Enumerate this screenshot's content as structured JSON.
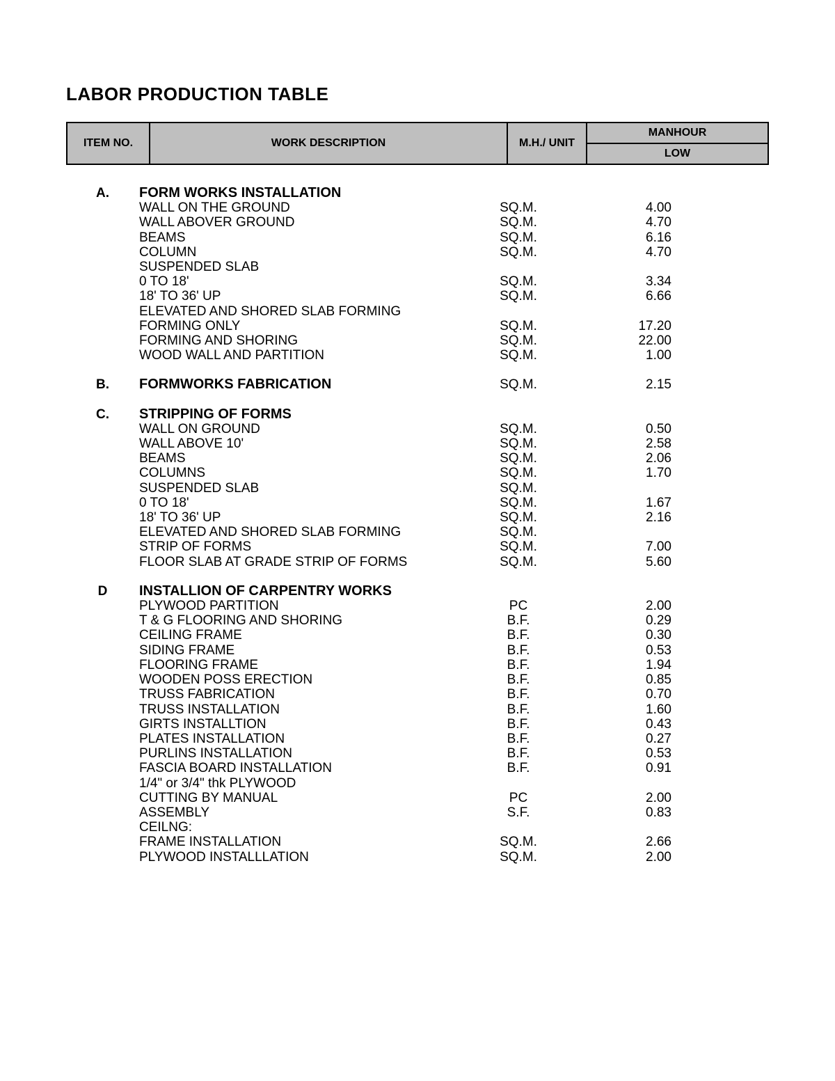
{
  "title": "LABOR PRODUCTION TABLE",
  "header": {
    "item_no": "ITEM NO.",
    "work_desc": "WORK DESCRIPTION",
    "mh_unit": "M.H./ UNIT",
    "manhour": "MANHOUR",
    "low": "LOW"
  },
  "colors": {
    "header_bg": "#bfbfbf",
    "page_bg": "#ffffff",
    "text": "#000000",
    "border": "#000000"
  },
  "typography": {
    "title_fontsize": 26,
    "body_fontsize": 19,
    "header_fontsize": 16,
    "font_family": "Arial"
  },
  "layout": {
    "col_widths": {
      "item": 105,
      "desc": 480,
      "unit": 130,
      "low": 155
    },
    "line_height": 21.2
  },
  "rows": [
    {
      "type": "section",
      "item": "A.",
      "desc": "FORM WORKS INSTALLATION"
    },
    {
      "type": "data",
      "desc": "WALL ON THE GROUND",
      "unit": "SQ.M.",
      "low": "4.00"
    },
    {
      "type": "data",
      "desc": "WALL ABOVER GROUND",
      "unit": "SQ.M.",
      "low": "4.70"
    },
    {
      "type": "data",
      "desc": "BEAMS",
      "unit": "SQ.M.",
      "low": "6.16"
    },
    {
      "type": "data",
      "desc": "COLUMN",
      "unit": "SQ.M.",
      "low": "4.70"
    },
    {
      "type": "label",
      "desc": "SUSPENDED SLAB"
    },
    {
      "type": "data",
      "desc": "0 TO 18'",
      "unit": "SQ.M.",
      "low": "3.34"
    },
    {
      "type": "data",
      "desc": "18' TO 36' UP",
      "unit": "SQ.M.",
      "low": "6.66"
    },
    {
      "type": "label",
      "desc": "ELEVATED AND SHORED SLAB FORMING"
    },
    {
      "type": "data",
      "desc": "FORMING ONLY",
      "unit": "SQ.M.",
      "low": "17.20"
    },
    {
      "type": "data",
      "desc": "FORMING AND SHORING",
      "unit": "SQ.M.",
      "low": "22.00"
    },
    {
      "type": "data",
      "desc": "WOOD WALL AND PARTITION",
      "unit": "SQ.M.",
      "low": "1.00"
    },
    {
      "type": "spacer"
    },
    {
      "type": "section",
      "item": "B.",
      "desc": "FORMWORKS FABRICATION",
      "unit": "SQ.M.",
      "low": "2.15"
    },
    {
      "type": "spacer"
    },
    {
      "type": "section",
      "item": "C.",
      "desc": "STRIPPING OF FORMS"
    },
    {
      "type": "data",
      "desc": "WALL ON GROUND",
      "unit": "SQ.M.",
      "low": "0.50"
    },
    {
      "type": "data",
      "desc": "WALL ABOVE 10'",
      "unit": "SQ.M.",
      "low": "2.58"
    },
    {
      "type": "data",
      "desc": "BEAMS",
      "unit": "SQ.M.",
      "low": "2.06"
    },
    {
      "type": "data",
      "desc": "COLUMNS",
      "unit": "SQ.M.",
      "low": "1.70"
    },
    {
      "type": "data",
      "desc": "SUSPENDED SLAB",
      "unit": "SQ.M.",
      "low": ""
    },
    {
      "type": "data",
      "desc": "0 TO 18'",
      "unit": "SQ.M.",
      "low": "1.67"
    },
    {
      "type": "data",
      "desc": "18' TO 36' UP",
      "unit": "SQ.M.",
      "low": "2.16"
    },
    {
      "type": "data",
      "desc": "ELEVATED AND SHORED SLAB FORMING",
      "unit": "SQ.M.",
      "low": ""
    },
    {
      "type": "data",
      "desc": "STRIP OF FORMS",
      "unit": "SQ.M.",
      "low": "7.00"
    },
    {
      "type": "data",
      "desc": "FLOOR SLAB AT GRADE STRIP OF FORMS",
      "unit": "SQ.M.",
      "low": "5.60"
    },
    {
      "type": "spacer"
    },
    {
      "type": "section",
      "item": "D",
      "desc": "INSTALLION OF CARPENTRY WORKS"
    },
    {
      "type": "data",
      "desc": "PLYWOOD PARTITION",
      "unit": "PC",
      "low": "2.00"
    },
    {
      "type": "data",
      "desc": "T & G FLOORING AND SHORING",
      "unit": "B.F.",
      "low": "0.29"
    },
    {
      "type": "data",
      "desc": "CEILING FRAME",
      "unit": "B.F.",
      "low": "0.30"
    },
    {
      "type": "data",
      "desc": "SIDING FRAME",
      "unit": "B.F.",
      "low": "0.53"
    },
    {
      "type": "data",
      "desc": "FLOORING FRAME",
      "unit": "B.F.",
      "low": "1.94"
    },
    {
      "type": "data",
      "desc": "WOODEN POSS ERECTION",
      "unit": "B.F.",
      "low": "0.85"
    },
    {
      "type": "data",
      "desc": "TRUSS FABRICATION",
      "unit": "B.F.",
      "low": "0.70"
    },
    {
      "type": "data",
      "desc": "TRUSS INSTALLATION",
      "unit": "B.F.",
      "low": "1.60"
    },
    {
      "type": "data",
      "desc": "GIRTS INSTALLTION",
      "unit": "B.F.",
      "low": "0.43"
    },
    {
      "type": "data",
      "desc": "PLATES INSTALLATION",
      "unit": "B.F.",
      "low": "0.27"
    },
    {
      "type": "data",
      "desc": "PURLINS INSTALLATION",
      "unit": "B.F.",
      "low": "0.53"
    },
    {
      "type": "data",
      "desc": "FASCIA BOARD INSTALLATION",
      "unit": "B.F.",
      "low": "0.91"
    },
    {
      "type": "label",
      "desc": "1/4\" or 3/4\" thk PLYWOOD"
    },
    {
      "type": "data",
      "desc": "CUTTING BY MANUAL",
      "unit": "PC",
      "low": "2.00"
    },
    {
      "type": "data",
      "desc": "ASSEMBLY",
      "unit": "S.F.",
      "low": "0.83"
    },
    {
      "type": "label",
      "desc": "CEILNG:"
    },
    {
      "type": "data",
      "desc": "FRAME INSTALLATION",
      "unit": "SQ.M.",
      "low": "2.66"
    },
    {
      "type": "data",
      "desc": "PLYWOOD INSTALLLATION",
      "unit": "SQ.M.",
      "low": "2.00"
    }
  ]
}
